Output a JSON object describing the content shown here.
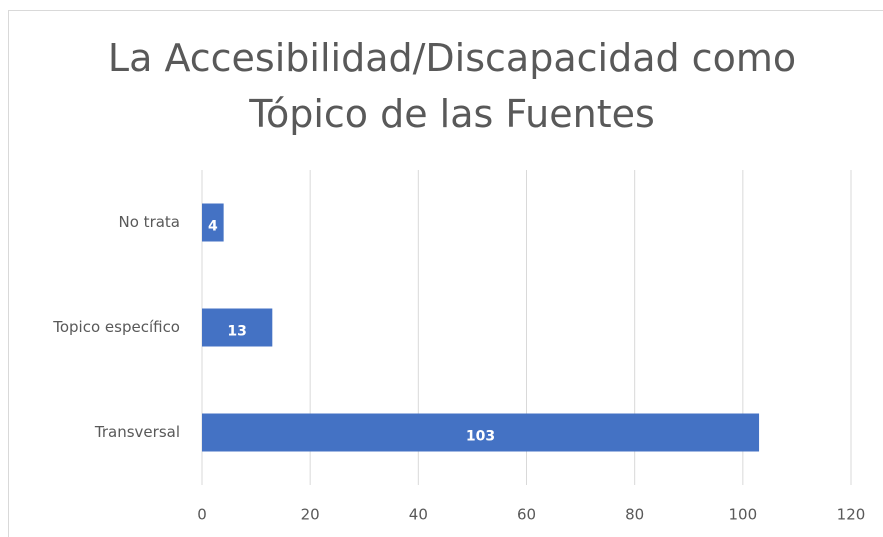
{
  "chart_data": {
    "type": "hbar",
    "title": "La Accesibilidad/Discapacidad como Tópico de las Fuentes",
    "categories": [
      "No trata",
      "Topico específico",
      "Transversal"
    ],
    "values": [
      4,
      13,
      103
    ],
    "color": "#4472c4",
    "xlim": [
      0,
      120
    ],
    "xticks": [
      0,
      20,
      40,
      60,
      80,
      100,
      120
    ],
    "grid": true
  }
}
